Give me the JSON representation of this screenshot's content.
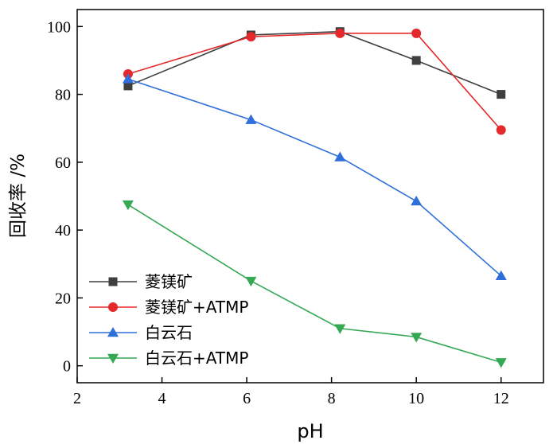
{
  "chart_data": {
    "type": "line",
    "title": "",
    "xlabel": "pH",
    "ylabel": "回收率 /%",
    "xlim": [
      2,
      13
    ],
    "ylim": [
      -5,
      105
    ],
    "xticks": [
      2,
      4,
      6,
      8,
      10,
      12
    ],
    "yticks": [
      0,
      20,
      40,
      60,
      80,
      100
    ],
    "legend_position": "bottom-left",
    "series": [
      {
        "name": "菱镁矿",
        "color": "#3f3f3f",
        "marker": "square",
        "x": [
          3.2,
          6.1,
          8.2,
          10.0,
          12.0
        ],
        "y": [
          82.5,
          97.5,
          98.5,
          90.0,
          80.0
        ]
      },
      {
        "name": "菱镁矿+ATMP",
        "color": "#e5282b",
        "marker": "circle",
        "x": [
          3.2,
          6.1,
          8.2,
          10.0,
          12.0
        ],
        "y": [
          86.0,
          97.0,
          98.0,
          98.0,
          69.5
        ]
      },
      {
        "name": "白云石",
        "color": "#2f6fdb",
        "marker": "triangle-up",
        "x": [
          3.2,
          6.1,
          8.2,
          10.0,
          12.0
        ],
        "y": [
          84.5,
          72.5,
          61.5,
          48.5,
          26.5
        ]
      },
      {
        "name": "白云石+ATMP",
        "color": "#34a853",
        "marker": "triangle-down",
        "x": [
          3.2,
          6.1,
          8.2,
          10.0,
          12.0
        ],
        "y": [
          47.5,
          25.0,
          11.0,
          8.5,
          1.0
        ]
      }
    ]
  }
}
